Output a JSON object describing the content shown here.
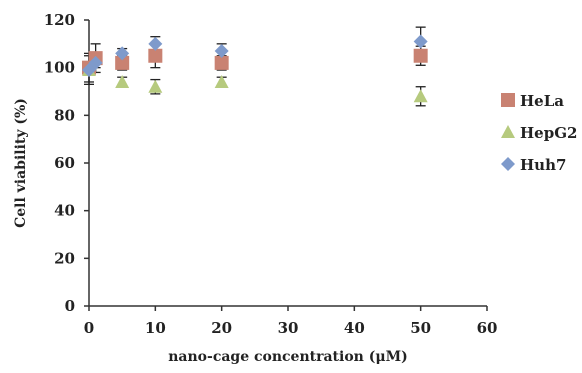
{
  "chart_data": {
    "type": "scatter",
    "xlabel": "nano-cage concentration (μM)",
    "ylabel": "Cell viability (%)",
    "xlim": [
      0,
      60
    ],
    "ylim": [
      0,
      120
    ],
    "xticks": [
      0,
      10,
      20,
      30,
      40,
      50,
      60
    ],
    "yticks": [
      0,
      20,
      40,
      60,
      80,
      100,
      120
    ],
    "grid": false,
    "legend": "right",
    "series": [
      {
        "name": "HeLa",
        "marker": "square",
        "color": "#c98272",
        "points": [
          {
            "x": 0,
            "y": 100,
            "err": 6
          },
          {
            "x": 1,
            "y": 104,
            "err": 6
          },
          {
            "x": 5,
            "y": 102,
            "err": 3
          },
          {
            "x": 10,
            "y": 105,
            "err": 5
          },
          {
            "x": 20,
            "y": 102,
            "err": 3
          },
          {
            "x": 50,
            "y": 105,
            "err": 4
          }
        ]
      },
      {
        "name": "HepG2",
        "marker": "triangle",
        "color": "#b6ca7e",
        "points": [
          {
            "x": 0,
            "y": 99,
            "err": 6
          },
          {
            "x": 5,
            "y": 94,
            "err": 2
          },
          {
            "x": 10,
            "y": 92,
            "err": 3
          },
          {
            "x": 20,
            "y": 94,
            "err": 2
          },
          {
            "x": 50,
            "y": 88,
            "err": 4
          }
        ]
      },
      {
        "name": "Huh7",
        "marker": "diamond",
        "color": "#7e9acb",
        "points": [
          {
            "x": 0,
            "y": 99,
            "err": 2
          },
          {
            "x": 1,
            "y": 102,
            "err": 2
          },
          {
            "x": 5,
            "y": 106,
            "err": 2
          },
          {
            "x": 10,
            "y": 110,
            "err": 3
          },
          {
            "x": 20,
            "y": 107,
            "err": 3
          },
          {
            "x": 50,
            "y": 111,
            "err": 6
          }
        ]
      }
    ]
  }
}
